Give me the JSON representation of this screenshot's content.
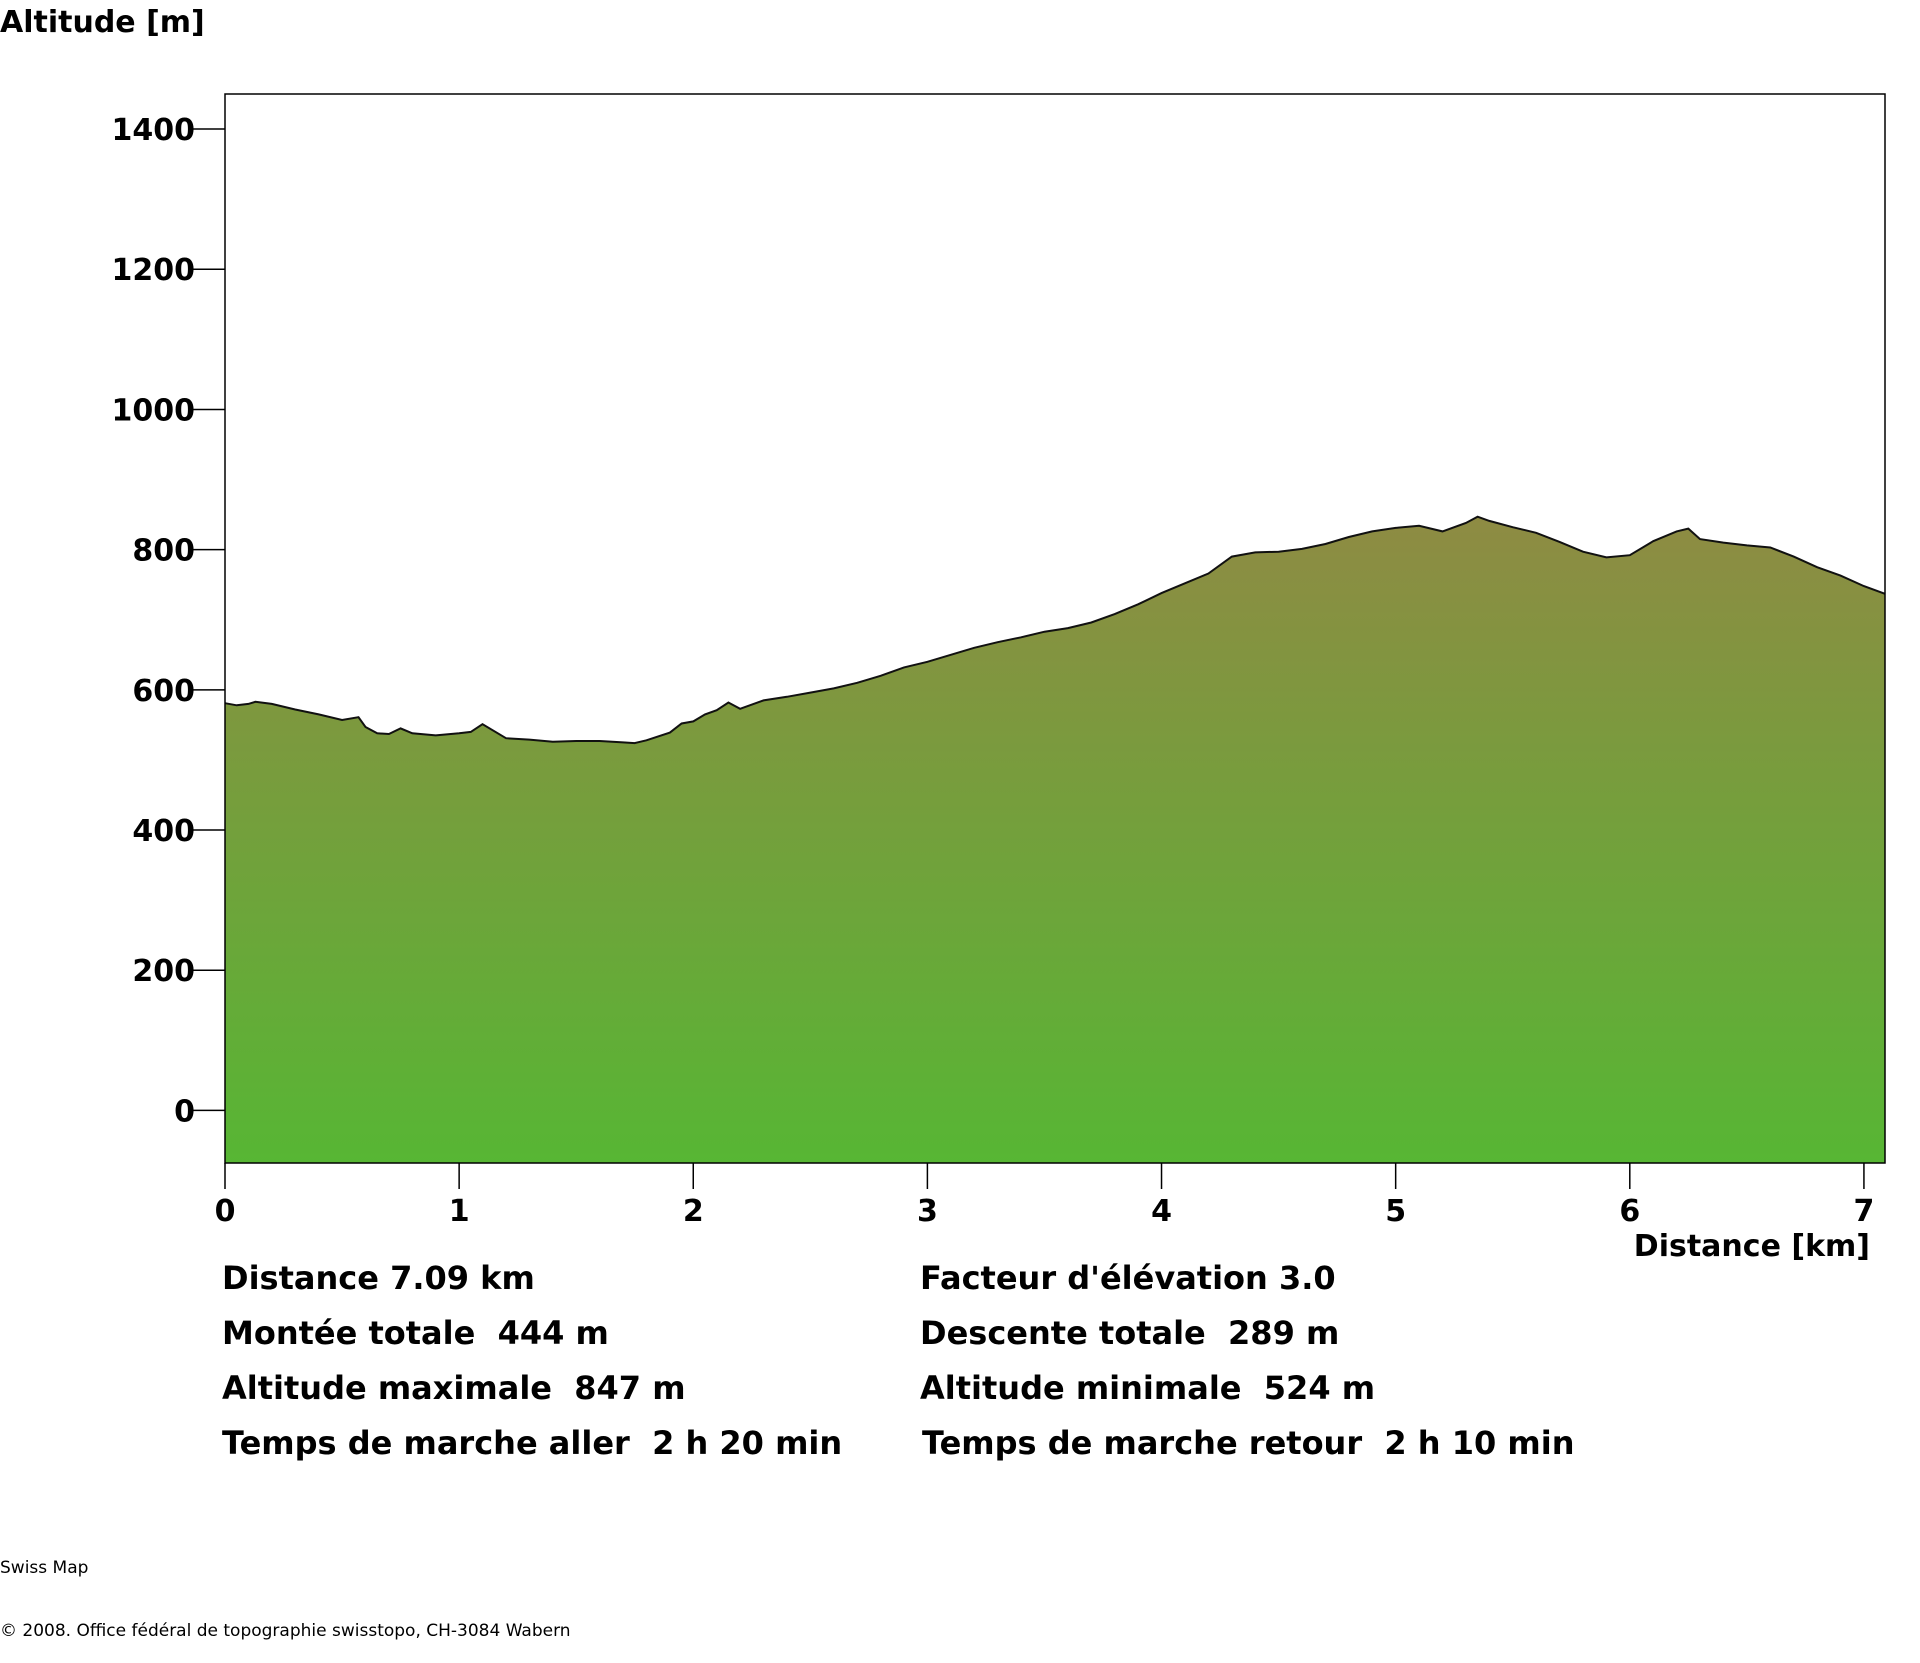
{
  "chart_data": {
    "type": "area",
    "ylabel": "Altitude [m]",
    "xlabel": "Distance [km]",
    "xlim": [
      0,
      7.09
    ],
    "ylim": [
      -75,
      1450
    ],
    "x_ticks": [
      0,
      1,
      2,
      3,
      4,
      5,
      6,
      7
    ],
    "y_ticks": [
      0,
      200,
      400,
      600,
      800,
      1000,
      1200,
      1400
    ],
    "grid": false,
    "colors": {
      "fill_top": "#8e8b43",
      "fill_bottom": "#57b634",
      "line": "#111111"
    },
    "x": [
      0,
      0.05,
      0.1,
      0.13,
      0.2,
      0.3,
      0.4,
      0.5,
      0.57,
      0.6,
      0.65,
      0.7,
      0.75,
      0.8,
      0.9,
      1.0,
      1.05,
      1.1,
      1.2,
      1.3,
      1.4,
      1.5,
      1.6,
      1.7,
      1.75,
      1.8,
      1.9,
      1.95,
      2.0,
      2.05,
      2.1,
      2.15,
      2.2,
      2.3,
      2.4,
      2.5,
      2.6,
      2.7,
      2.8,
      2.9,
      3.0,
      3.1,
      3.2,
      3.3,
      3.4,
      3.5,
      3.6,
      3.7,
      3.8,
      3.9,
      4.0,
      4.1,
      4.2,
      4.3,
      4.4,
      4.5,
      4.6,
      4.7,
      4.8,
      4.9,
      5.0,
      5.1,
      5.2,
      5.3,
      5.35,
      5.4,
      5.5,
      5.6,
      5.7,
      5.8,
      5.9,
      6.0,
      6.1,
      6.2,
      6.25,
      6.3,
      6.4,
      6.5,
      6.6,
      6.7,
      6.8,
      6.9,
      7.0,
      7.09
    ],
    "y": [
      581,
      578,
      580,
      583,
      580,
      572,
      565,
      557,
      561,
      547,
      538,
      537,
      545,
      538,
      535,
      538,
      540,
      551,
      531,
      529,
      526,
      527,
      527,
      525,
      524,
      528,
      539,
      552,
      555,
      565,
      571,
      582,
      573,
      585,
      590,
      596,
      602,
      610,
      620,
      632,
      640,
      650,
      660,
      668,
      675,
      683,
      688,
      696,
      708,
      722,
      738,
      752,
      766,
      790,
      796,
      797,
      801,
      808,
      818,
      826,
      831,
      834,
      826,
      838,
      847,
      841,
      832,
      824,
      811,
      797,
      789,
      792,
      812,
      826,
      830,
      815,
      810,
      806,
      803,
      790,
      775,
      763,
      748,
      737
    ]
  },
  "stats": {
    "distance": "Distance 7.09 km",
    "elevation_factor": "Facteur d'élévation 3.0",
    "total_ascent": "Montée totale  444 m",
    "total_descent": "Descente totale  289 m",
    "max_altitude": "Altitude maximale  847 m",
    "min_altitude": "Altitude minimale  524 m",
    "walk_time_out": "Temps de marche aller  2 h 20 min",
    "walk_time_back": "Temps de marche retour  2 h 10 min"
  },
  "footer": {
    "product": "Swiss Map",
    "copyright": "© 2008. Office fédéral de topographie swisstopo, CH-3084 Wabern"
  }
}
